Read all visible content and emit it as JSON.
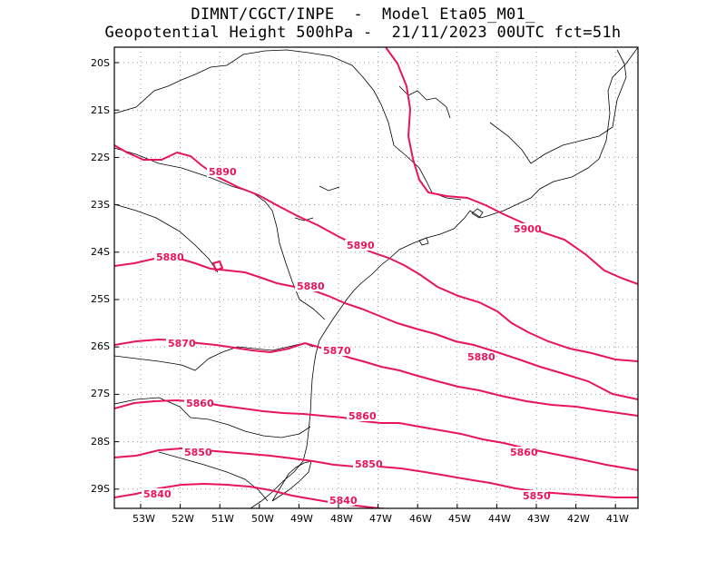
{
  "header": {
    "line1": "DIMNT/CGCT/INPE  -  Model Eta05_M01_",
    "line2": "Geopotential Height 500hPa -  21/11/2023 00UTC fct=51h"
  },
  "axes": {
    "x_ticks": [
      "53W",
      "52W",
      "51W",
      "50W",
      "49W",
      "48W",
      "47W",
      "46W",
      "45W",
      "44W",
      "43W",
      "42W",
      "41W"
    ],
    "y_ticks": [
      "20S",
      "21S",
      "22S",
      "23S",
      "24S",
      "25S",
      "26S",
      "27S",
      "28S",
      "29S"
    ]
  },
  "colors": {
    "contour": "#e8145c",
    "coastline": "#000000",
    "grid": "#9a9a9a"
  },
  "contour_labels": [
    {
      "text": "5900"
    },
    {
      "text": "5890"
    },
    {
      "text": "5890"
    },
    {
      "text": "5880"
    },
    {
      "text": "5880"
    },
    {
      "text": "5880"
    },
    {
      "text": "5870"
    },
    {
      "text": "5870"
    },
    {
      "text": "5860"
    },
    {
      "text": "5860"
    },
    {
      "text": "5860"
    },
    {
      "text": "5850"
    },
    {
      "text": "5850"
    },
    {
      "text": "5850"
    },
    {
      "text": "5840"
    },
    {
      "text": "5840"
    }
  ]
}
